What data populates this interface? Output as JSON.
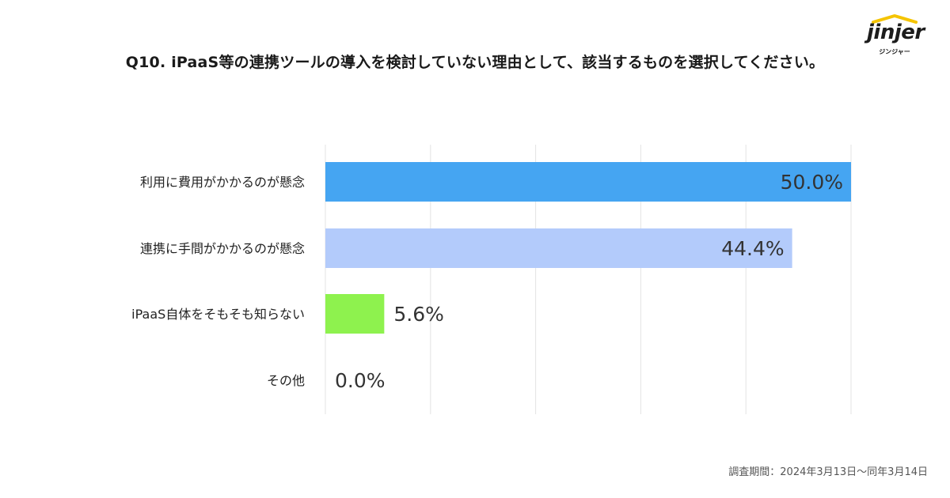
{
  "header": {
    "title": "Q10. iPaaS等の連携ツールの導入を検討していない理由として、該当するものを選択してください。"
  },
  "logo": {
    "text": "jinjer",
    "kana": "ジンジャー",
    "accent_color": "#f5c400"
  },
  "footnote": "調査期間：2024年3月13日〜同年3月14日",
  "chart_data": {
    "type": "bar",
    "orientation": "horizontal",
    "categories": [
      "利用に費用がかかるのが懸念",
      "連携に手間がかかるのが懸念",
      "iPaaS自体をそもそも知らない",
      "その他"
    ],
    "values": [
      50.0,
      44.4,
      5.6,
      0.0
    ],
    "value_labels": [
      "50.0%",
      "44.4%",
      "5.6%",
      "0.0%"
    ],
    "colors": [
      "#45a5f2",
      "#b3cbfb",
      "#8ef24e",
      "#cccccc"
    ],
    "xlim": [
      0,
      50
    ],
    "grid": true,
    "grid_color": "#e3e3e3"
  }
}
